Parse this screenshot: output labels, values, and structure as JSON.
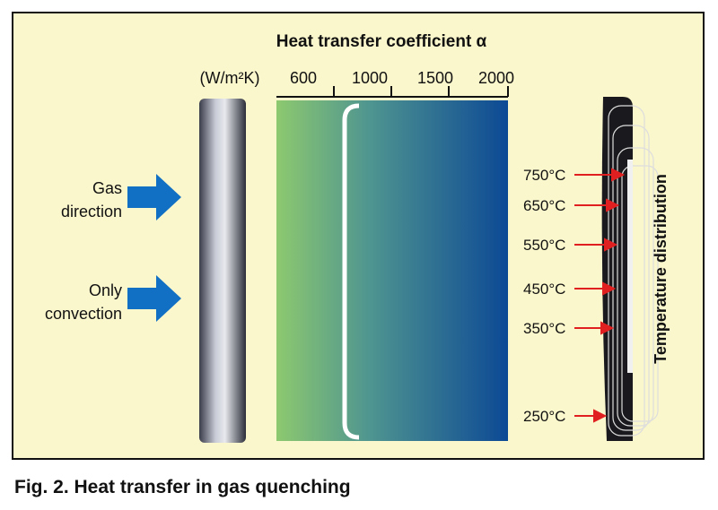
{
  "title": "Heat transfer coefficient α",
  "unit": "(W/m²K)",
  "scale_labels": [
    "600",
    "1000",
    "1500",
    "2000"
  ],
  "flow_labels": [
    [
      "Gas",
      "direction"
    ],
    [
      "Only",
      "convection"
    ]
  ],
  "temperatures": [
    "750°C",
    "650°C",
    "550°C",
    "450°C",
    "350°C",
    "250°C"
  ],
  "side_label": "Temperature distribution",
  "caption": "Fig. 2. Heat transfer in gas quenching"
}
